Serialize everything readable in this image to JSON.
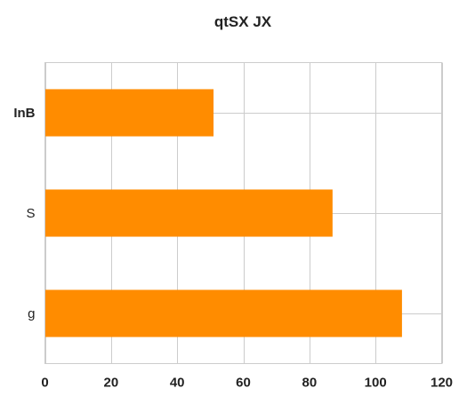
{
  "chart_data": {
    "type": "bar",
    "orientation": "horizontal",
    "title": "qtSX JX",
    "xlabel": "",
    "ylabel": "",
    "categories": [
      "InB",
      "S",
      "g"
    ],
    "values": [
      51,
      87,
      108
    ],
    "bold_categories": [
      "InB"
    ],
    "xlim": [
      0,
      120
    ],
    "x_ticks": [
      0,
      20,
      40,
      60,
      80,
      100,
      120
    ],
    "grid": true,
    "legend": "none",
    "bar_color": "#ff8c00",
    "grid_color": "#cccccc"
  }
}
